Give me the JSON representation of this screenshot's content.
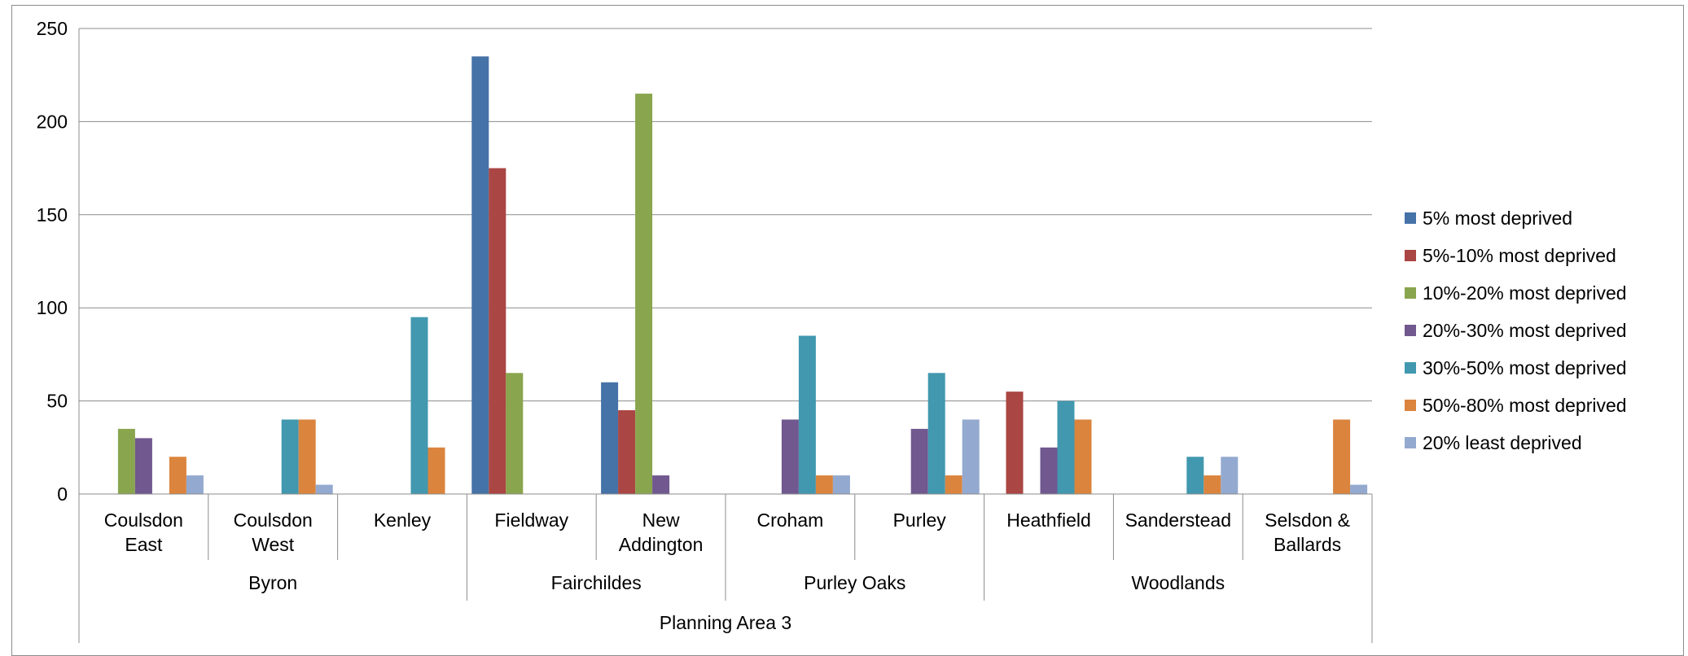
{
  "chart_data": {
    "type": "bar",
    "title": "",
    "xlabel": "",
    "ylabel": "",
    "ylim": [
      0,
      250
    ],
    "yticks": [
      0,
      50,
      100,
      150,
      200,
      250
    ],
    "grid": true,
    "legend_position": "right",
    "categories": [
      "Coulsdon East",
      "Coulsdon West",
      "Kenley",
      "Fieldway",
      "New Addington",
      "Croham",
      "Purley",
      "Heathfield",
      "Sanderstead",
      "Selsdon & Ballards"
    ],
    "category_labels": [
      [
        "Coulsdon",
        "East"
      ],
      [
        "Coulsdon",
        "West"
      ],
      [
        "Kenley"
      ],
      [
        "Fieldway"
      ],
      [
        "New",
        "Addington"
      ],
      [
        "Croham"
      ],
      [
        "Purley"
      ],
      [
        "Heathfield"
      ],
      [
        "Sanderstead"
      ],
      [
        "Selsdon &",
        "Ballards"
      ]
    ],
    "groups": [
      {
        "label": "Byron",
        "start": 0,
        "end": 2
      },
      {
        "label": "Fairchildes",
        "start": 3,
        "end": 4
      },
      {
        "label": "Purley Oaks",
        "start": 5,
        "end": 6
      },
      {
        "label": "Woodlands",
        "start": 7,
        "end": 9
      }
    ],
    "supergroup": {
      "label": "Planning Area 3",
      "start": 0,
      "end": 9
    },
    "series": [
      {
        "name": "5% most deprived",
        "color": "#4572A7",
        "values": [
          0,
          0,
          0,
          235,
          60,
          0,
          0,
          0,
          0,
          0
        ]
      },
      {
        "name": "5%-10% most deprived",
        "color": "#AA4643",
        "values": [
          0,
          0,
          0,
          175,
          45,
          0,
          0,
          55,
          0,
          0
        ]
      },
      {
        "name": "10%-20% most deprived",
        "color": "#89A54E",
        "values": [
          35,
          0,
          0,
          65,
          215,
          0,
          0,
          0,
          0,
          0
        ]
      },
      {
        "name": "20%-30% most deprived",
        "color": "#71588F",
        "values": [
          30,
          0,
          0,
          0,
          10,
          40,
          35,
          25,
          0,
          0
        ]
      },
      {
        "name": "30%-50% most deprived",
        "color": "#4198AF",
        "values": [
          0,
          40,
          95,
          0,
          0,
          85,
          65,
          50,
          20,
          0
        ]
      },
      {
        "name": "50%-80% most deprived",
        "color": "#DB843D",
        "values": [
          20,
          40,
          25,
          0,
          0,
          10,
          10,
          40,
          10,
          40
        ]
      },
      {
        "name": "20% least deprived",
        "color": "#93A9CF",
        "values": [
          10,
          5,
          0,
          0,
          0,
          10,
          40,
          0,
          20,
          5
        ]
      }
    ]
  }
}
